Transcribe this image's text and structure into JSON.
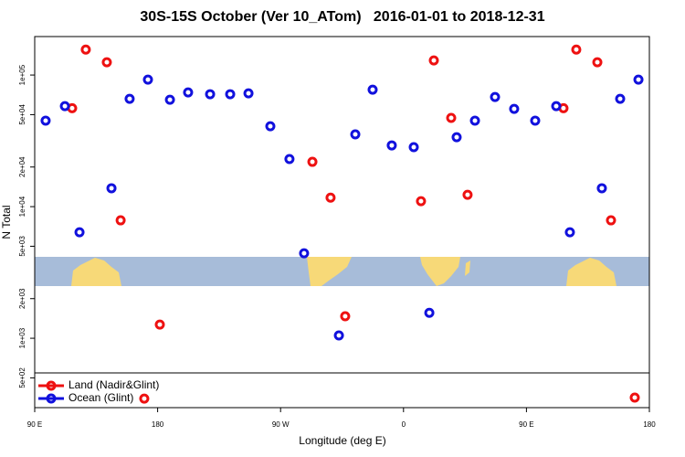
{
  "chart_data": {
    "type": "scatter",
    "title": "30S-15S October (Ver 10_ATom)   2016-01-01 to 2018-12-31",
    "x_label": "Longitude (deg E)",
    "y_label": "N Total",
    "log_y": true,
    "legend": "bottom-left",
    "xlim": [
      90,
      540
    ],
    "ylim": [
      297,
      196000
    ],
    "xticks": [
      {
        "value": 90,
        "label": "90 E"
      },
      {
        "value": 180,
        "label": "180"
      },
      {
        "value": 270,
        "label": "90 W"
      },
      {
        "value": 360,
        "label": "0"
      },
      {
        "value": 450,
        "label": "90 E"
      },
      {
        "value": 540,
        "label": "180"
      }
    ],
    "yticks": [
      {
        "value": 500,
        "label": "5e+02"
      },
      {
        "value": 1000,
        "label": "1e+03"
      },
      {
        "value": 2000,
        "label": "2e+03"
      },
      {
        "value": 5000,
        "label": "5e+03"
      },
      {
        "value": 10000,
        "label": "1e+04"
      },
      {
        "value": 20000,
        "label": "2e+04"
      },
      {
        "value": 50000,
        "label": "5e+04"
      },
      {
        "value": 100000,
        "label": "1e+05"
      }
    ],
    "series": [
      {
        "name": "Land (Nadir&Glint)",
        "color": "#ee1111",
        "x": [
          117.4,
          127.4,
          142.8,
          152.9,
          170.2,
          181.6,
          293.3,
          306.6,
          317.3,
          372.8,
          382.2,
          394.9,
          406.9,
          477.1,
          486.5,
          501.9,
          511.9,
          529.3
        ],
        "values": [
          56000,
          156000,
          125000,
          7870,
          348,
          1270,
          21900,
          11700,
          1470,
          11000,
          129000,
          47200,
          12300,
          56000,
          156000,
          125000,
          7870,
          354
        ]
      },
      {
        "name": "Ocean (Glint)",
        "color": "#1111dd",
        "x": [
          98.0,
          112.1,
          122.8,
          146.2,
          159.5,
          172.9,
          189.0,
          202.3,
          218.4,
          233.1,
          246.5,
          262.5,
          276.5,
          287.2,
          312.7,
          324.7,
          337.4,
          351.4,
          367.5,
          378.9,
          398.9,
          412.3,
          427.0,
          441.0,
          456.4,
          471.8,
          481.8,
          505.2,
          518.6,
          532.0
        ],
        "values": [
          45000,
          58000,
          6390,
          13800,
          65900,
          92300,
          64900,
          73800,
          71500,
          71500,
          72600,
          40800,
          23000,
          4420,
          1050,
          35400,
          77400,
          29200,
          28300,
          1560,
          33700,
          45000,
          68100,
          55300,
          45000,
          58000,
          6390,
          13800,
          65900,
          92300
        ]
      }
    ]
  }
}
